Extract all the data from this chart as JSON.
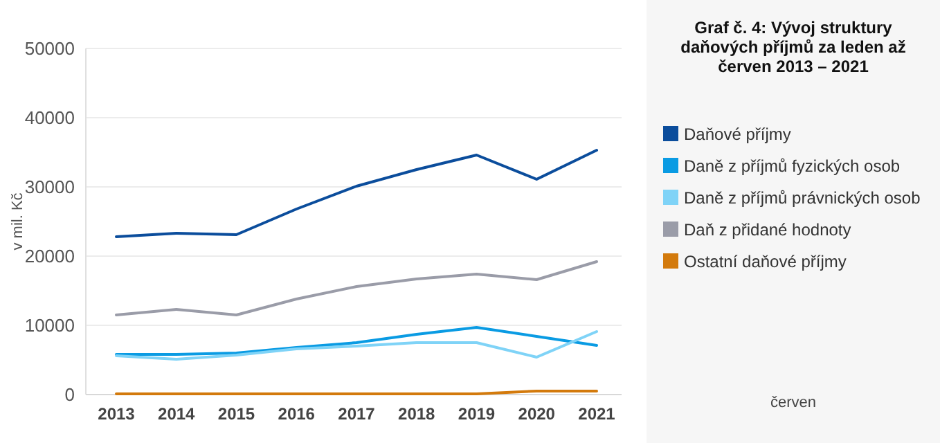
{
  "chart_data": {
    "type": "line",
    "title": "Graf č. 4: Vývoj struktury daňových příjmů za leden až červen 2013 – 2021",
    "ylabel": "v mil. Kč",
    "categories": [
      "2013",
      "2014",
      "2015",
      "2016",
      "2017",
      "2018",
      "2019",
      "2020",
      "2021"
    ],
    "series": [
      {
        "name": "Daňové příjmy",
        "color": "#0b4d9c",
        "values": [
          22800,
          23300,
          23100,
          26800,
          30100,
          32500,
          34600,
          31100,
          35300
        ]
      },
      {
        "name": "Daně z příjmů fyzických osob",
        "color": "#0a9be3",
        "values": [
          5800,
          5800,
          6000,
          6800,
          7500,
          8700,
          9700,
          8400,
          7100
        ]
      },
      {
        "name": "Daně z příjmů právnických osob",
        "color": "#7fd3f7",
        "values": [
          5600,
          5100,
          5700,
          6600,
          7000,
          7500,
          7500,
          5400,
          9100
        ]
      },
      {
        "name": "Daň z přidané hodnoty",
        "color": "#9a9ca8",
        "values": [
          11500,
          12300,
          11500,
          13800,
          15600,
          16700,
          17400,
          16600,
          19200
        ]
      },
      {
        "name": "Ostatní daňové příjmy",
        "color": "#d37a0c",
        "values": [
          100,
          100,
          100,
          100,
          100,
          100,
          100,
          500,
          500
        ]
      }
    ],
    "ylim": [
      0,
      50000
    ],
    "yticks": [
      0,
      10000,
      20000,
      30000,
      40000,
      50000
    ],
    "grid": "y",
    "legend": "right",
    "marker": "none",
    "line_style": "solid",
    "annotations": [
      "červen"
    ]
  }
}
